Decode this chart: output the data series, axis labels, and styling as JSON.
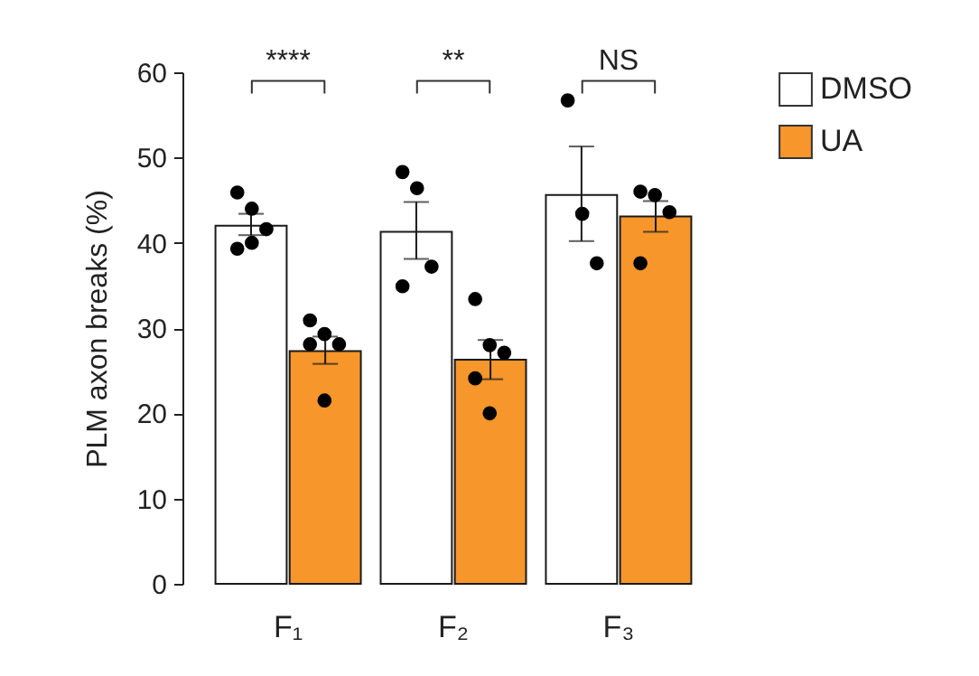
{
  "chart_data": {
    "type": "bar",
    "ylabel": "PLM axon breaks (%)",
    "categories": [
      "F₁",
      "F₂",
      "F₃"
    ],
    "series": [
      {
        "name": "DMSO",
        "color": "#ffffff",
        "values": [
          42.0,
          41.3,
          45.6
        ],
        "errors": [
          [
            40.9,
            43.4
          ],
          [
            38.1,
            44.8
          ],
          [
            40.2,
            51.3
          ]
        ]
      },
      {
        "name": "UA",
        "color": "#f7962b",
        "values": [
          27.3,
          26.3,
          43.1
        ],
        "errors": [
          [
            25.8,
            29.0
          ],
          [
            24.0,
            28.6
          ],
          [
            41.3,
            44.9
          ]
        ]
      },
      {
        "type": "scatter",
        "color": "#000000",
        "x": [
          "F₁",
          "F₁",
          "F₁",
          "F₁",
          "F₁",
          "F₂",
          "F₂",
          "F₂",
          "F₂",
          "F₃",
          "F₃",
          "F₃"
        ],
        "values": [
          45.9,
          44.0,
          41.6,
          39.3,
          40.0,
          48.3,
          46.4,
          37.2,
          34.9,
          56.7,
          43.4,
          37.6
        ]
      },
      {
        "type": "scatter",
        "color": "#000000",
        "x": [
          "F₁",
          "F₁",
          "F₁",
          "F₁",
          "F₁",
          "F₂",
          "F₂",
          "F₂",
          "F₂",
          "F₂",
          "F₃",
          "F₃",
          "F₃",
          "F₃"
        ],
        "values": [
          30.9,
          29.3,
          28.1,
          28.1,
          21.5,
          33.4,
          28.0,
          27.1,
          24.1,
          20.0,
          46.0,
          45.6,
          43.6,
          37.6
        ]
      }
    ],
    "ylim": [
      0,
      60
    ],
    "yticks": [
      0,
      10,
      20,
      30,
      40,
      50,
      60
    ],
    "grid": false,
    "legend": "top right",
    "marker": "circle",
    "annotations": [
      "****",
      "**",
      "NS"
    ]
  }
}
